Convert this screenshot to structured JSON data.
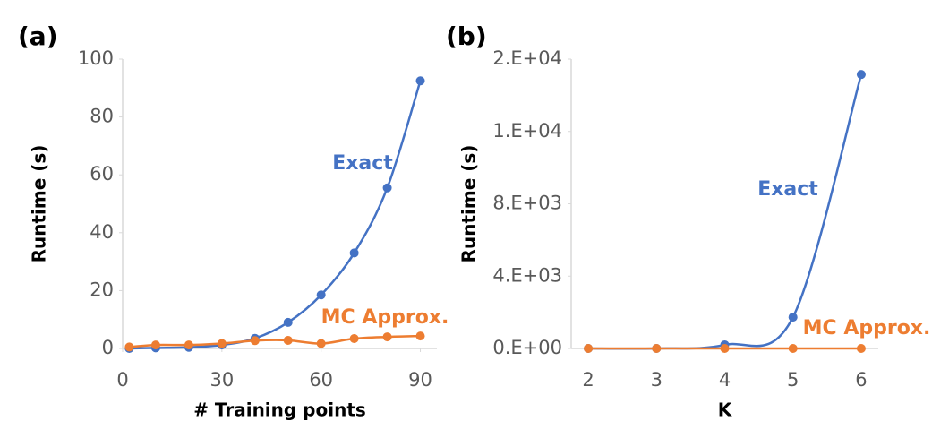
{
  "chart_data": [
    {
      "type": "line",
      "panel_label": "(a)",
      "xlabel": "# Training points",
      "ylabel": "Runtime (s)",
      "x": [
        2,
        10,
        20,
        30,
        40,
        50,
        60,
        70,
        80,
        90
      ],
      "series": [
        {
          "name": "Exact",
          "color": "#4472c4",
          "values": [
            0,
            0.2,
            0.4,
            1.2,
            3.5,
            9,
            18.5,
            33,
            55.5,
            92.5
          ]
        },
        {
          "name": "MC Approx.",
          "color": "#ed7d31",
          "values": [
            0.5,
            1.2,
            1.2,
            1.7,
            2.7,
            2.8,
            1.7,
            3.4,
            4,
            4.3
          ]
        }
      ],
      "xlim": [
        0,
        95
      ],
      "xticks": [
        0,
        30,
        60,
        90
      ],
      "ylim": [
        0,
        100
      ],
      "yticks": [
        0,
        20,
        40,
        60,
        80,
        100
      ]
    },
    {
      "type": "line",
      "panel_label": "(b)",
      "xlabel": "K",
      "ylabel": "Runtime (s)",
      "x": [
        2,
        3,
        4,
        5,
        6
      ],
      "series": [
        {
          "name": "Exact",
          "color": "#4472c4",
          "values": [
            0,
            0,
            200,
            1730,
            15150
          ]
        },
        {
          "name": "MC Approx.",
          "color": "#ed7d31",
          "values": [
            0,
            0,
            0,
            0,
            0
          ]
        }
      ],
      "xlim": [
        1.75,
        6.25
      ],
      "xticks": [
        2,
        3,
        4,
        5,
        6
      ],
      "ylim": [
        0,
        16000
      ],
      "yticks": [
        {
          "value": 0,
          "label": "0.E+00"
        },
        {
          "value": 4000,
          "label": "4.E+03"
        },
        {
          "value": 8000,
          "label": "8.E+03"
        },
        {
          "value": 12000,
          "label": "1.E+04"
        },
        {
          "value": 16000,
          "label": "2.E+04"
        }
      ]
    }
  ]
}
